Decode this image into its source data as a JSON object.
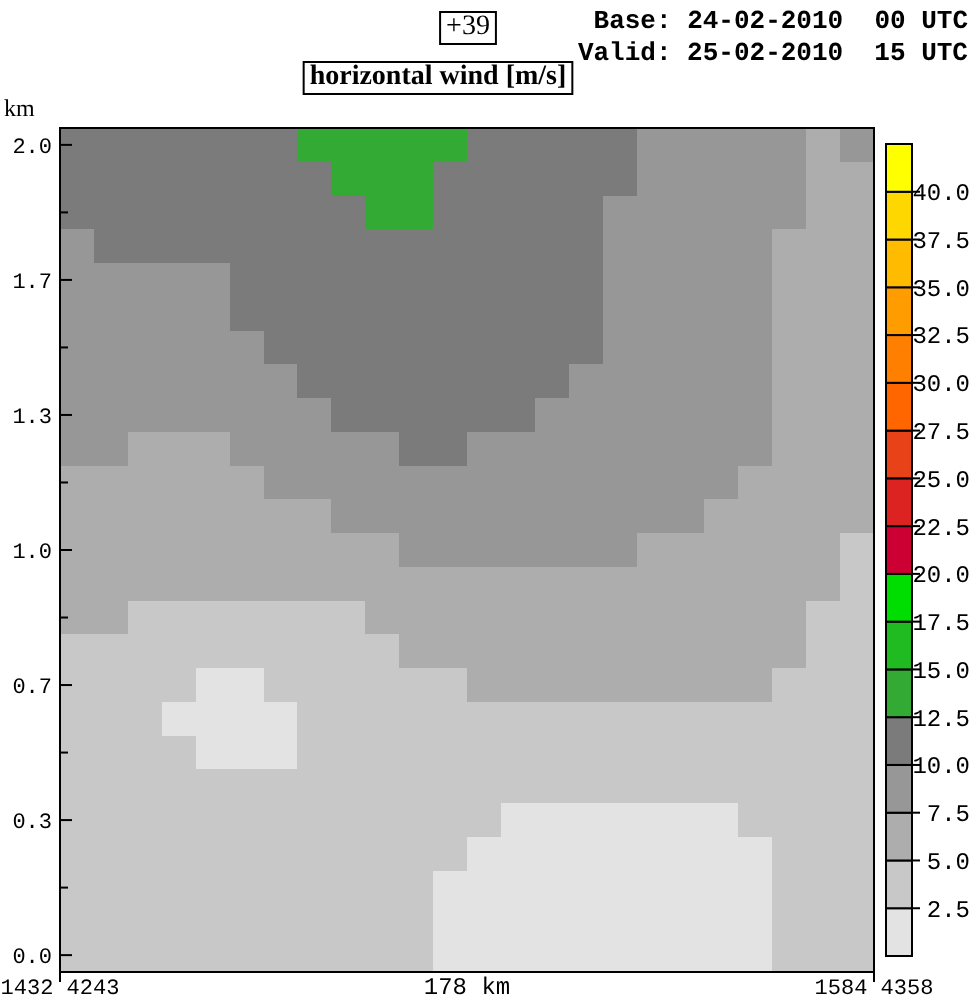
{
  "chart_data": {
    "type": "heatmap",
    "title": "horizontal wind [m/s]",
    "annotations": [
      "+39",
      "Base: 24-02-2010  00 UTC",
      "Valid: 25-02-2010  15 UTC",
      "1432 4243",
      "1584 4358"
    ],
    "xlabel": "178 km",
    "ylabel": "km",
    "categories": [
      null,
      null,
      null,
      null,
      null,
      null,
      null,
      null,
      null,
      null,
      null,
      null,
      null,
      null,
      null,
      null,
      null,
      null,
      null,
      null,
      null,
      null,
      null,
      null
    ],
    "y_categories": [
      "2.0",
      null,
      null,
      null,
      "1.7",
      null,
      null,
      null,
      "1.3",
      null,
      null,
      null,
      "1.0",
      null,
      null,
      null,
      "0.7",
      null,
      null,
      null,
      "0.3",
      null,
      null,
      null,
      "0.0"
    ],
    "clim": [
      0,
      42.5
    ],
    "cticks": [
      2.5,
      {
        "value": 5,
        "label": "5.0"
      },
      7.5,
      {
        "value": 10,
        "label": "10.0"
      },
      12.5,
      {
        "value": 15,
        "label": "15.0"
      },
      17.5,
      {
        "value": 20,
        "label": "20.0"
      },
      22.5,
      {
        "value": 25,
        "label": "25.0"
      },
      27.5,
      {
        "value": 30,
        "label": "30.0"
      },
      32.5,
      {
        "value": 35,
        "label": "35.0"
      },
      37.5,
      {
        "value": 40,
        "label": "40.0"
      }
    ],
    "colors": [
      "#e3e3e3",
      "#c8c8c8",
      "#adadad",
      "#979797",
      "#7b7b7b",
      "#33aa33",
      "#20bb20",
      "#00dd00",
      "#cc0033",
      "#dd2222",
      "#e84318",
      "#ff6600",
      "#ff8000",
      "#ff9d00",
      "#ffbb00",
      "#ffd700",
      "#ffff00"
    ],
    "cells": [
      [
        11,
        11,
        11,
        11,
        11,
        11,
        11,
        14,
        14,
        14,
        14,
        14,
        11,
        11,
        11,
        11,
        11,
        9,
        9,
        9,
        9,
        9,
        6,
        9
      ],
      [
        11,
        11,
        11,
        11,
        11,
        11,
        11,
        11,
        14,
        14,
        14,
        11,
        11,
        11,
        11,
        11,
        11,
        9,
        9,
        9,
        9,
        9,
        6,
        6
      ],
      [
        11,
        11,
        11,
        11,
        11,
        11,
        11,
        11,
        11,
        14,
        14,
        11,
        11,
        11,
        11,
        11,
        9,
        9,
        9,
        9,
        9,
        9,
        6,
        6
      ],
      [
        9,
        11,
        11,
        11,
        11,
        11,
        11,
        11,
        11,
        11,
        11,
        11,
        11,
        11,
        11,
        11,
        9,
        9,
        9,
        9,
        9,
        6,
        6,
        6
      ],
      [
        9,
        9,
        9,
        9,
        9,
        11,
        11,
        11,
        11,
        11,
        11,
        11,
        11,
        11,
        11,
        11,
        9,
        9,
        9,
        9,
        9,
        6,
        6,
        6
      ],
      [
        9,
        9,
        9,
        9,
        9,
        11,
        11,
        11,
        11,
        11,
        11,
        11,
        11,
        11,
        11,
        11,
        9,
        9,
        9,
        9,
        9,
        6,
        6,
        6
      ],
      [
        9,
        9,
        9,
        9,
        9,
        9,
        11,
        11,
        11,
        11,
        11,
        11,
        11,
        11,
        11,
        11,
        9,
        9,
        9,
        9,
        9,
        6,
        6,
        6
      ],
      [
        9,
        9,
        9,
        9,
        9,
        9,
        9,
        11,
        11,
        11,
        11,
        11,
        11,
        11,
        11,
        9,
        9,
        9,
        9,
        9,
        9,
        6,
        6,
        6
      ],
      [
        9,
        9,
        9,
        9,
        9,
        9,
        9,
        9,
        11,
        11,
        11,
        11,
        11,
        11,
        9,
        9,
        9,
        9,
        9,
        9,
        9,
        6,
        6,
        6
      ],
      [
        9,
        9,
        6,
        6,
        6,
        9,
        9,
        9,
        9,
        9,
        11,
        11,
        9,
        9,
        9,
        9,
        9,
        9,
        9,
        9,
        9,
        6,
        6,
        6
      ],
      [
        6,
        6,
        6,
        6,
        6,
        6,
        9,
        9,
        9,
        9,
        9,
        9,
        9,
        9,
        9,
        9,
        9,
        9,
        9,
        9,
        6,
        6,
        6,
        6
      ],
      [
        6,
        6,
        6,
        6,
        6,
        6,
        6,
        6,
        9,
        9,
        9,
        9,
        9,
        9,
        9,
        9,
        9,
        9,
        9,
        6,
        6,
        6,
        6,
        6
      ],
      [
        6,
        6,
        6,
        6,
        6,
        6,
        6,
        6,
        6,
        6,
        9,
        9,
        9,
        9,
        9,
        9,
        9,
        6,
        6,
        6,
        6,
        6,
        6,
        4
      ],
      [
        6,
        6,
        6,
        6,
        6,
        6,
        6,
        6,
        6,
        6,
        6,
        6,
        6,
        6,
        6,
        6,
        6,
        6,
        6,
        6,
        6,
        6,
        6,
        4
      ],
      [
        6,
        6,
        4,
        4,
        4,
        4,
        4,
        4,
        4,
        6,
        6,
        6,
        6,
        6,
        6,
        6,
        6,
        6,
        6,
        6,
        6,
        6,
        4,
        4
      ],
      [
        4,
        4,
        4,
        4,
        4,
        4,
        4,
        4,
        4,
        4,
        6,
        6,
        6,
        6,
        6,
        6,
        6,
        6,
        6,
        6,
        6,
        6,
        4,
        4
      ],
      [
        4,
        4,
        4,
        4,
        1,
        1,
        4,
        4,
        4,
        4,
        4,
        4,
        6,
        6,
        6,
        6,
        6,
        6,
        6,
        6,
        6,
        4,
        4,
        4
      ],
      [
        4,
        4,
        4,
        1,
        1,
        1,
        1,
        4,
        4,
        4,
        4,
        4,
        4,
        4,
        4,
        4,
        4,
        4,
        4,
        4,
        4,
        4,
        4,
        4
      ],
      [
        4,
        4,
        4,
        4,
        1,
        1,
        1,
        4,
        4,
        4,
        4,
        4,
        4,
        4,
        4,
        4,
        4,
        4,
        4,
        4,
        4,
        4,
        4,
        4
      ],
      [
        4,
        4,
        4,
        4,
        4,
        4,
        4,
        4,
        4,
        4,
        4,
        4,
        4,
        4,
        4,
        4,
        4,
        4,
        4,
        4,
        4,
        4,
        4,
        4
      ],
      [
        4,
        4,
        4,
        4,
        4,
        4,
        4,
        4,
        4,
        4,
        4,
        4,
        4,
        1,
        1,
        1,
        1,
        1,
        1,
        1,
        4,
        4,
        4,
        4
      ],
      [
        4,
        4,
        4,
        4,
        4,
        4,
        4,
        4,
        4,
        4,
        4,
        4,
        1,
        1,
        1,
        1,
        1,
        1,
        1,
        1,
        1,
        4,
        4,
        4
      ],
      [
        4,
        4,
        4,
        4,
        4,
        4,
        4,
        4,
        4,
        4,
        4,
        1,
        1,
        1,
        1,
        1,
        1,
        1,
        1,
        1,
        1,
        4,
        4,
        4
      ],
      [
        4,
        4,
        4,
        4,
        4,
        4,
        4,
        4,
        4,
        4,
        4,
        1,
        1,
        1,
        1,
        1,
        1,
        1,
        1,
        1,
        1,
        4,
        4,
        4
      ],
      [
        4,
        4,
        4,
        4,
        4,
        4,
        4,
        4,
        4,
        4,
        4,
        1,
        1,
        1,
        1,
        1,
        1,
        1,
        1,
        1,
        1,
        4,
        4,
        4
      ]
    ]
  }
}
